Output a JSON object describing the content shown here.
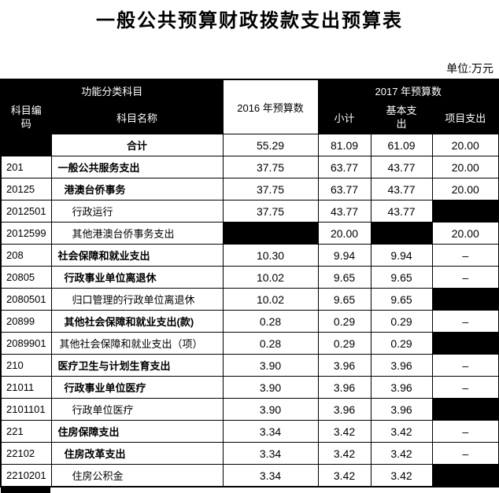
{
  "title": "一般公共预算财政拨款支出预算表",
  "unit_note": "单位:万元",
  "colors": {
    "page_bg": "#ffffff",
    "cell_dark_bg": "#000000",
    "text_on_dark": "#ffffff",
    "border": "#000000"
  },
  "header": {
    "func_class": "功能分类科目",
    "code": "科目编码",
    "name": "科目名称",
    "y2016": "2016 年预算数",
    "y2017": "2017 年预算数",
    "subtotal": "小计",
    "basic": "基本支出",
    "project": "项目支出"
  },
  "rows": [
    {
      "code": "",
      "name": "合计",
      "indent": 0,
      "bold": true,
      "center": true,
      "values": [
        "55.29",
        "81.09",
        "61.09",
        "20.00"
      ]
    },
    {
      "code": "201",
      "name": "一般公共服务支出",
      "indent": 8,
      "bold": true,
      "center": false,
      "values": [
        "37.75",
        "63.77",
        "43.77",
        "20.00"
      ]
    },
    {
      "code": "20125",
      "name": "港澳台侨事务",
      "indent": 16,
      "bold": true,
      "center": false,
      "values": [
        "37.75",
        "63.77",
        "43.77",
        "20.00"
      ]
    },
    {
      "code": "2012501",
      "name": "行政运行",
      "indent": 26,
      "bold": false,
      "center": false,
      "values": [
        "37.75",
        "43.77",
        "43.77",
        ""
      ]
    },
    {
      "code": "2012599",
      "name": "其他港澳台侨事务支出",
      "indent": 26,
      "bold": false,
      "center": false,
      "values": [
        "",
        "20.00",
        "",
        "20.00"
      ]
    },
    {
      "code": "208",
      "name": "社会保障和就业支出",
      "indent": 8,
      "bold": true,
      "center": false,
      "values": [
        "10.30",
        "9.94",
        "9.94",
        "–"
      ]
    },
    {
      "code": "20805",
      "name": "行政事业单位离退休",
      "indent": 16,
      "bold": true,
      "center": false,
      "values": [
        "10.02",
        "9.65",
        "9.65",
        "–"
      ]
    },
    {
      "code": "2080501",
      "name": "归口管理的行政单位离退休",
      "indent": 26,
      "bold": false,
      "center": false,
      "values": [
        "10.02",
        "9.65",
        "9.65",
        ""
      ]
    },
    {
      "code": "20899",
      "name": "其他社会保障和就业支出(款)",
      "indent": 16,
      "bold": true,
      "center": false,
      "values": [
        "0.28",
        "0.29",
        "0.29",
        "–"
      ]
    },
    {
      "code": "2089901",
      "name": "其他社会保障和就业支出（项）",
      "indent": 10,
      "bold": false,
      "center": false,
      "values": [
        "0.28",
        "0.29",
        "0.29",
        ""
      ]
    },
    {
      "code": "210",
      "name": "医疗卫生与计划生育支出",
      "indent": 8,
      "bold": true,
      "center": false,
      "values": [
        "3.90",
        "3.96",
        "3.96",
        "–"
      ]
    },
    {
      "code": "21011",
      "name": "行政事业单位医疗",
      "indent": 16,
      "bold": true,
      "center": false,
      "values": [
        "3.90",
        "3.96",
        "3.96",
        "–"
      ]
    },
    {
      "code": "2101101",
      "name": "行政单位医疗",
      "indent": 26,
      "bold": false,
      "center": false,
      "values": [
        "3.90",
        "3.96",
        "3.96",
        ""
      ]
    },
    {
      "code": "221",
      "name": "住房保障支出",
      "indent": 8,
      "bold": true,
      "center": false,
      "values": [
        "3.34",
        "3.42",
        "3.42",
        "–"
      ]
    },
    {
      "code": "22102",
      "name": "住房改革支出",
      "indent": 16,
      "bold": true,
      "center": false,
      "values": [
        "3.34",
        "3.42",
        "3.42",
        "–"
      ]
    },
    {
      "code": "2210201",
      "name": "住房公积金",
      "indent": 26,
      "bold": false,
      "center": false,
      "values": [
        "3.34",
        "3.42",
        "3.42",
        ""
      ]
    }
  ]
}
